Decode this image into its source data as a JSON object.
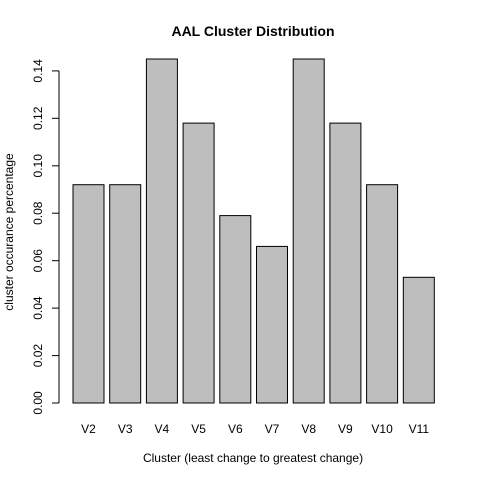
{
  "chart_data": {
    "type": "bar",
    "title": "AAL Cluster Distribution",
    "xlabel": "Cluster (least change to greatest change)",
    "ylabel": "cluster occurance percentage",
    "categories": [
      "V2",
      "V3",
      "V4",
      "V5",
      "V6",
      "V7",
      "V8",
      "V9",
      "V10",
      "V11"
    ],
    "values": [
      0.092,
      0.092,
      0.145,
      0.118,
      0.079,
      0.066,
      0.145,
      0.118,
      0.092,
      0.053
    ],
    "ylim": [
      0,
      0.145
    ],
    "yticks": [
      0.0,
      0.02,
      0.04,
      0.06,
      0.08,
      0.1,
      0.12,
      0.14
    ],
    "ytick_labels": [
      "0.00",
      "0.02",
      "0.04",
      "0.06",
      "0.08",
      "0.10",
      "0.12",
      "0.14"
    ],
    "bar_color": "#bebebe",
    "grid": false,
    "legend": "none"
  }
}
